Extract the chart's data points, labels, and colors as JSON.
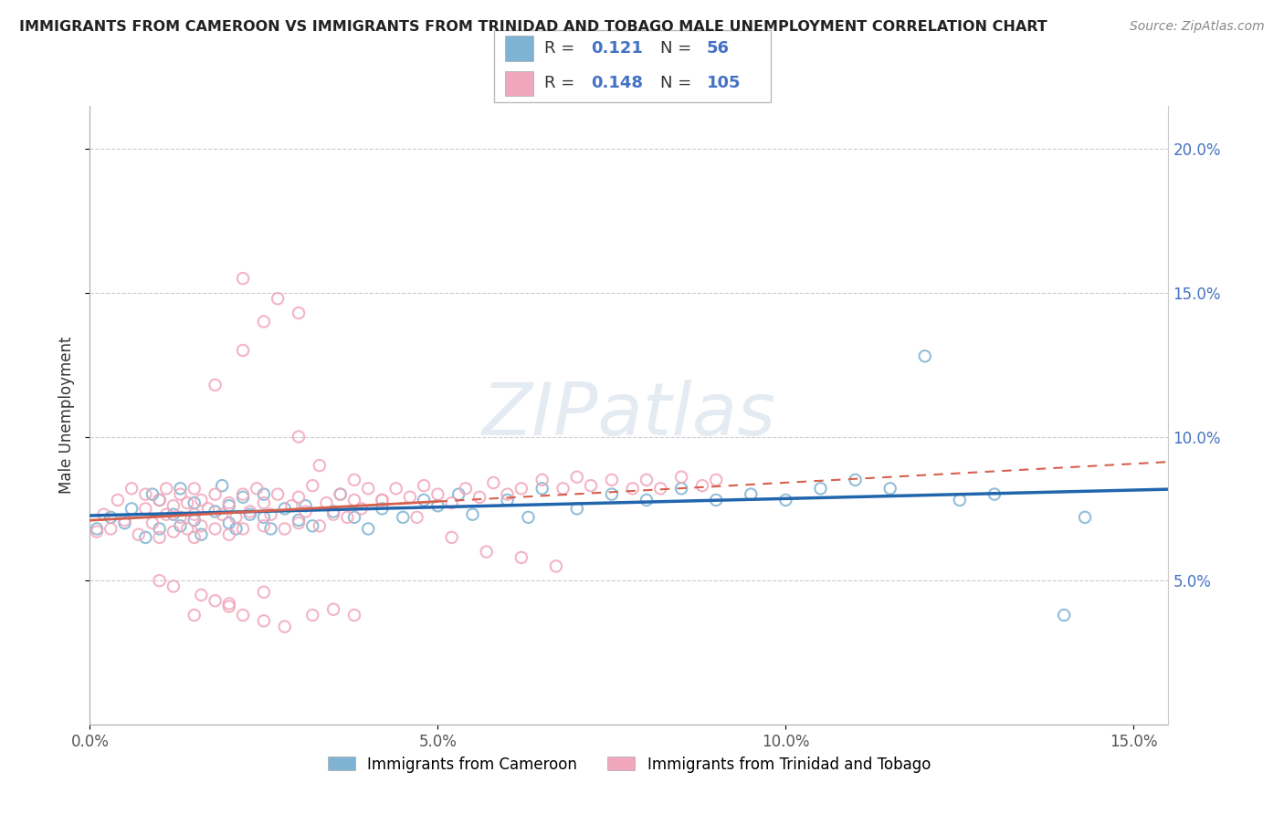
{
  "title": "IMMIGRANTS FROM CAMEROON VS IMMIGRANTS FROM TRINIDAD AND TOBAGO MALE UNEMPLOYMENT CORRELATION CHART",
  "source": "Source: ZipAtlas.com",
  "ylabel": "Male Unemployment",
  "legend_label1": "Immigrants from Cameroon",
  "legend_label2": "Immigrants from Trinidad and Tobago",
  "R1": 0.121,
  "N1": 56,
  "R2": 0.148,
  "N2": 105,
  "color1": "#7fb3d3",
  "color2": "#f1a7bb",
  "trend_color1": "#2166ac",
  "trend_color2": "#d6604d",
  "xlim": [
    0.0,
    0.155
  ],
  "ylim": [
    0.0,
    0.215
  ],
  "x_ticks": [
    0.0,
    0.05,
    0.1,
    0.15
  ],
  "x_tick_labels": [
    "0.0%",
    "5.0%",
    "10.0%",
    "15.0%"
  ],
  "y_ticks": [
    0.05,
    0.1,
    0.15,
    0.2
  ],
  "y_tick_labels": [
    "5.0%",
    "10.0%",
    "15.0%",
    "20.0%"
  ],
  "watermark": "ZIPatlas",
  "background_color": "#ffffff",
  "scatter1_x": [
    0.001,
    0.003,
    0.005,
    0.006,
    0.008,
    0.009,
    0.01,
    0.01,
    0.012,
    0.013,
    0.013,
    0.015,
    0.015,
    0.016,
    0.018,
    0.019,
    0.02,
    0.02,
    0.021,
    0.022,
    0.023,
    0.025,
    0.025,
    0.026,
    0.028,
    0.03,
    0.031,
    0.032,
    0.035,
    0.036,
    0.038,
    0.04,
    0.042,
    0.045,
    0.048,
    0.05,
    0.053,
    0.055,
    0.06,
    0.063,
    0.065,
    0.07,
    0.075,
    0.08,
    0.085,
    0.09,
    0.095,
    0.1,
    0.105,
    0.11,
    0.115,
    0.12,
    0.125,
    0.13,
    0.14,
    0.143
  ],
  "scatter1_y": [
    0.068,
    0.072,
    0.07,
    0.075,
    0.065,
    0.08,
    0.068,
    0.078,
    0.073,
    0.069,
    0.082,
    0.071,
    0.077,
    0.066,
    0.074,
    0.083,
    0.07,
    0.076,
    0.068,
    0.079,
    0.073,
    0.072,
    0.08,
    0.068,
    0.075,
    0.071,
    0.076,
    0.069,
    0.074,
    0.08,
    0.072,
    0.068,
    0.075,
    0.072,
    0.078,
    0.076,
    0.08,
    0.073,
    0.078,
    0.072,
    0.082,
    0.075,
    0.08,
    0.078,
    0.082,
    0.078,
    0.08,
    0.078,
    0.082,
    0.085,
    0.082,
    0.128,
    0.078,
    0.08,
    0.038,
    0.072
  ],
  "scatter2_x": [
    0.001,
    0.002,
    0.003,
    0.004,
    0.005,
    0.006,
    0.007,
    0.008,
    0.008,
    0.009,
    0.01,
    0.01,
    0.011,
    0.011,
    0.012,
    0.012,
    0.013,
    0.013,
    0.014,
    0.014,
    0.015,
    0.015,
    0.015,
    0.016,
    0.016,
    0.017,
    0.018,
    0.018,
    0.019,
    0.02,
    0.02,
    0.021,
    0.022,
    0.022,
    0.023,
    0.024,
    0.025,
    0.025,
    0.026,
    0.027,
    0.028,
    0.029,
    0.03,
    0.03,
    0.031,
    0.032,
    0.033,
    0.034,
    0.035,
    0.036,
    0.037,
    0.038,
    0.039,
    0.04,
    0.042,
    0.044,
    0.046,
    0.048,
    0.05,
    0.052,
    0.054,
    0.056,
    0.058,
    0.06,
    0.062,
    0.065,
    0.068,
    0.07,
    0.072,
    0.075,
    0.078,
    0.08,
    0.082,
    0.085,
    0.088,
    0.09,
    0.018,
    0.022,
    0.025,
    0.03,
    0.033,
    0.038,
    0.042,
    0.047,
    0.052,
    0.057,
    0.062,
    0.067,
    0.022,
    0.027,
    0.03,
    0.015,
    0.02,
    0.025,
    0.01,
    0.012,
    0.016,
    0.018,
    0.02,
    0.022,
    0.025,
    0.028,
    0.032,
    0.035,
    0.038
  ],
  "scatter2_y": [
    0.067,
    0.073,
    0.068,
    0.078,
    0.071,
    0.082,
    0.066,
    0.075,
    0.08,
    0.07,
    0.065,
    0.078,
    0.073,
    0.082,
    0.067,
    0.076,
    0.072,
    0.08,
    0.068,
    0.077,
    0.065,
    0.073,
    0.082,
    0.069,
    0.078,
    0.075,
    0.068,
    0.08,
    0.073,
    0.066,
    0.077,
    0.072,
    0.068,
    0.08,
    0.074,
    0.082,
    0.069,
    0.077,
    0.073,
    0.08,
    0.068,
    0.076,
    0.07,
    0.079,
    0.074,
    0.083,
    0.069,
    0.077,
    0.073,
    0.08,
    0.072,
    0.078,
    0.075,
    0.082,
    0.078,
    0.082,
    0.079,
    0.083,
    0.08,
    0.077,
    0.082,
    0.079,
    0.084,
    0.08,
    0.082,
    0.085,
    0.082,
    0.086,
    0.083,
    0.085,
    0.082,
    0.085,
    0.082,
    0.086,
    0.083,
    0.085,
    0.118,
    0.13,
    0.14,
    0.1,
    0.09,
    0.085,
    0.078,
    0.072,
    0.065,
    0.06,
    0.058,
    0.055,
    0.155,
    0.148,
    0.143,
    0.038,
    0.042,
    0.046,
    0.05,
    0.048,
    0.045,
    0.043,
    0.041,
    0.038,
    0.036,
    0.034,
    0.038,
    0.04,
    0.038
  ]
}
